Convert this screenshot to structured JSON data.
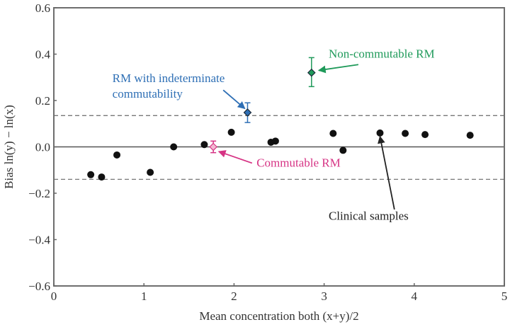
{
  "chart_data": {
    "type": "scatter",
    "title": "",
    "xlabel": "Mean concentration both (x+y)/2",
    "ylabel": "Bias ln(y) − ln(x)",
    "xlim": [
      0,
      5
    ],
    "ylim": [
      -0.6,
      0.6
    ],
    "x_ticks": [
      0,
      1,
      2,
      3,
      4,
      5
    ],
    "x_tick_labels": [
      "0",
      "1",
      "2",
      "3",
      "4",
      "5"
    ],
    "y_ticks": [
      -0.6,
      -0.4,
      -0.2,
      0.0,
      0.2,
      0.4,
      0.6
    ],
    "y_tick_labels": [
      "−0.6",
      "−0.4",
      "−0.2",
      "0.0",
      "0.2",
      "0.4",
      "0.6"
    ],
    "grid": false,
    "reference_lines": [
      {
        "name": "zero-line",
        "y": 0.0,
        "style": "solid"
      },
      {
        "name": "upper-limit",
        "y": 0.135,
        "style": "dashed"
      },
      {
        "name": "lower-limit",
        "y": -0.14,
        "style": "dashed"
      }
    ],
    "series": [
      {
        "name": "Clinical samples",
        "marker": "circle",
        "color": "#111111",
        "points": [
          {
            "x": 0.41,
            "y": -0.12
          },
          {
            "x": 0.53,
            "y": -0.13
          },
          {
            "x": 0.7,
            "y": -0.035
          },
          {
            "x": 1.07,
            "y": -0.11
          },
          {
            "x": 1.33,
            "y": 0.0
          },
          {
            "x": 1.67,
            "y": 0.01
          },
          {
            "x": 1.97,
            "y": 0.063
          },
          {
            "x": 2.41,
            "y": 0.02
          },
          {
            "x": 2.46,
            "y": 0.025
          },
          {
            "x": 3.1,
            "y": 0.058
          },
          {
            "x": 3.21,
            "y": -0.015
          },
          {
            "x": 3.62,
            "y": 0.06
          },
          {
            "x": 3.9,
            "y": 0.058
          },
          {
            "x": 4.12,
            "y": 0.053
          },
          {
            "x": 4.62,
            "y": 0.05
          }
        ]
      },
      {
        "name": "Commutable RM",
        "marker": "diamond",
        "color": "#d63384",
        "points": [
          {
            "x": 1.77,
            "y": 0.0,
            "err_low": -0.025,
            "err_high": 0.025
          }
        ]
      },
      {
        "name": "RM with indeterminate commutability",
        "marker": "diamond",
        "color": "#2e6fb5",
        "points": [
          {
            "x": 2.15,
            "y": 0.148,
            "err_low": 0.105,
            "err_high": 0.19
          }
        ]
      },
      {
        "name": "Non-commutable RM",
        "marker": "diamond",
        "color": "#1f9a5a",
        "points": [
          {
            "x": 2.86,
            "y": 0.32,
            "err_low": 0.26,
            "err_high": 0.385
          }
        ]
      }
    ],
    "annotations": [
      {
        "name": "annotation-indeterminate",
        "lines": [
          "RM with indeterminate",
          "commutability"
        ],
        "color": "#2e6fb5",
        "text_at": [
          0.65,
          0.28
        ],
        "arrow_from": [
          1.88,
          0.245
        ],
        "arrow_to": [
          2.12,
          0.165
        ]
      },
      {
        "name": "annotation-non-commutable",
        "lines": [
          "Non-commutable RM"
        ],
        "color": "#1f9a5a",
        "text_at": [
          3.05,
          0.385
        ],
        "arrow_from": [
          3.38,
          0.355
        ],
        "arrow_to": [
          2.94,
          0.33
        ]
      },
      {
        "name": "annotation-commutable",
        "lines": [
          "Commutable RM"
        ],
        "color": "#d63384",
        "text_at": [
          2.25,
          -0.085
        ],
        "arrow_from": [
          2.2,
          -0.07
        ],
        "arrow_to": [
          1.83,
          -0.02
        ]
      },
      {
        "name": "annotation-clinical",
        "lines": [
          "Clinical samples"
        ],
        "color": "#222222",
        "text_at": [
          3.05,
          -0.315
        ],
        "arrow_from": [
          3.78,
          -0.27
        ],
        "arrow_to": [
          3.62,
          0.045
        ]
      }
    ]
  }
}
